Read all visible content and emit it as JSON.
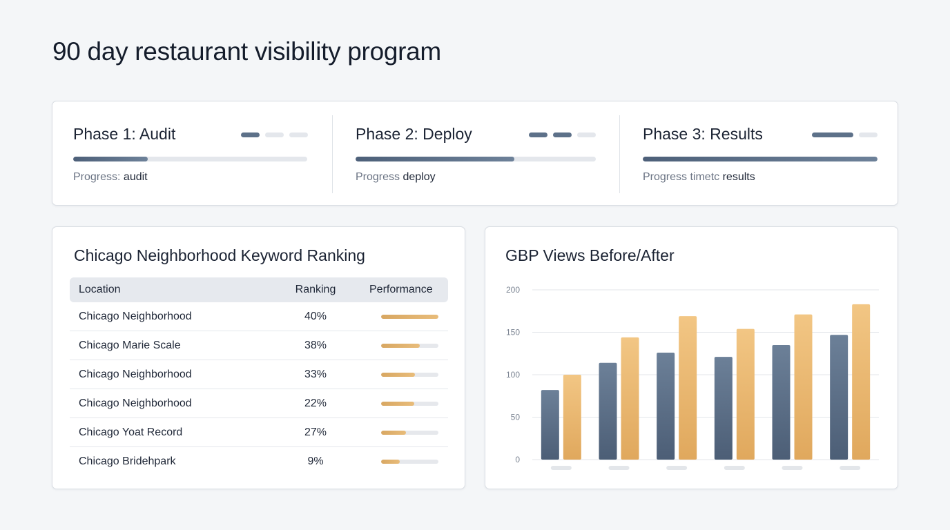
{
  "page": {
    "title": "90 day restaurant visibility program"
  },
  "phases": [
    {
      "title": "Phase 1: Audit",
      "sub_prefix": "Progress: ",
      "sub_value": "audit",
      "progress": 0.32,
      "steps_total": 3,
      "steps_active": 1
    },
    {
      "title": "Phase 2: Deploy",
      "sub_prefix": "Progress ",
      "sub_value": "deploy",
      "progress": 0.66,
      "steps_total": 3,
      "steps_active": 2
    },
    {
      "title": "Phase 3: Results",
      "sub_prefix": "Progress timetc ",
      "sub_value": "results",
      "progress": 1.0,
      "steps_total": 2,
      "steps_active": 1
    }
  ],
  "ranking": {
    "title": "Chicago Neighborhood Keyword Ranking",
    "headers": {
      "location": "Location",
      "ranking": "Ranking",
      "performance": "Performance"
    },
    "rows": [
      {
        "location": "Chicago Neighborhood",
        "ranking": "40%",
        "performance": 1.0
      },
      {
        "location": "Chicago Marie Scale",
        "ranking": "38%",
        "performance": 0.68
      },
      {
        "location": "Chicago Neighborhood",
        "ranking": "33%",
        "performance": 0.59
      },
      {
        "location": "Chicago Neighborhood",
        "ranking": "22%",
        "performance": 0.58
      },
      {
        "location": "Chicago Yoat Record",
        "ranking": "27%",
        "performance": 0.43
      },
      {
        "location": "Chicago Bridehpark",
        "ranking": "9%",
        "performance": 0.32
      }
    ]
  },
  "chart_data": {
    "type": "bar",
    "title": "GBP Views Before/After",
    "xlabel": "",
    "ylabel": "",
    "ylim": [
      0,
      200
    ],
    "yticks": [
      0,
      50,
      100,
      150,
      200
    ],
    "grid": true,
    "categories": [
      "",
      "",
      "",
      "",
      "",
      ""
    ],
    "series": [
      {
        "values": [
          82,
          114,
          126,
          121,
          135,
          147
        ],
        "color": "#5a6d85"
      },
      {
        "values": [
          100,
          144,
          169,
          154,
          171,
          183
        ],
        "color": "#e8b46f"
      }
    ]
  },
  "colors": {
    "accent_slate": "#5d7189",
    "accent_gold": "#e2ae68",
    "background": "#f4f6f8",
    "card": "#ffffff"
  }
}
